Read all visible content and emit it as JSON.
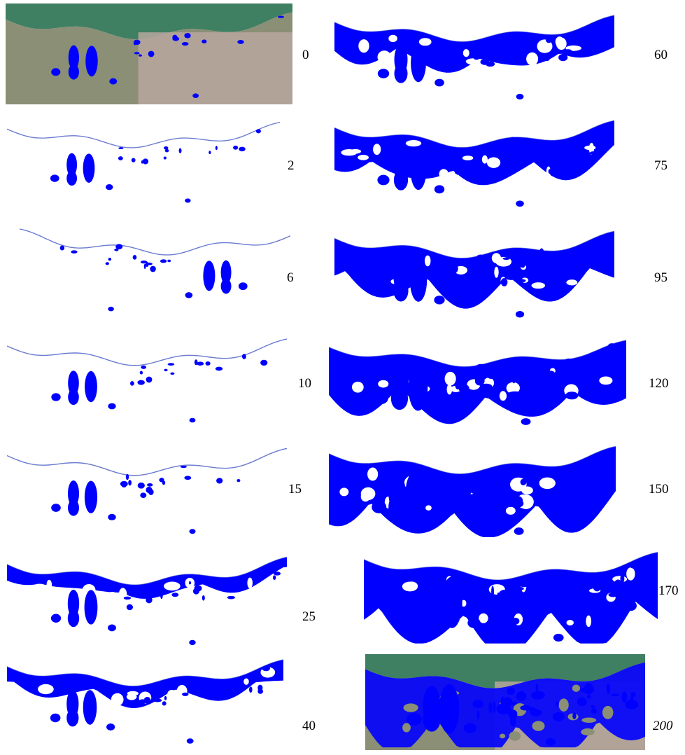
{
  "colors": {
    "flood": "#0000ff",
    "background": "#ffffff",
    "sea": "#3f7f62",
    "land": "#8a8f75",
    "city": "#b7a79f",
    "coast_line": "#6a7ad0"
  },
  "panels": [
    {
      "id": "p0",
      "label": "0",
      "italic": false,
      "satellite": true,
      "level": 0.08
    },
    {
      "id": "p2",
      "label": "2",
      "italic": false,
      "satellite": false,
      "level": 0.1
    },
    {
      "id": "p6",
      "label": "6",
      "italic": false,
      "satellite": false,
      "level": 0.12,
      "mirrored": true
    },
    {
      "id": "p10",
      "label": "10",
      "italic": false,
      "satellite": false,
      "level": 0.14
    },
    {
      "id": "p15",
      "label": "15",
      "italic": false,
      "satellite": false,
      "level": 0.17
    },
    {
      "id": "p25",
      "label": "25",
      "italic": false,
      "satellite": false,
      "level": 0.22
    },
    {
      "id": "p40",
      "label": "40",
      "italic": false,
      "satellite": false,
      "level": 0.3
    },
    {
      "id": "p60",
      "label": "60",
      "italic": false,
      "satellite": false,
      "level": 0.45
    },
    {
      "id": "p75",
      "label": "75",
      "italic": false,
      "satellite": false,
      "level": 0.55
    },
    {
      "id": "p95",
      "label": "95",
      "italic": false,
      "satellite": false,
      "level": 0.65
    },
    {
      "id": "p120",
      "label": "120",
      "italic": false,
      "satellite": false,
      "level": 0.78
    },
    {
      "id": "p150",
      "label": "150",
      "italic": false,
      "satellite": false,
      "level": 0.88
    },
    {
      "id": "p170",
      "label": "170",
      "italic": false,
      "satellite": false,
      "level": 0.94
    },
    {
      "id": "p200",
      "label": "200",
      "italic": true,
      "satellite": true,
      "level": 1.0
    }
  ]
}
